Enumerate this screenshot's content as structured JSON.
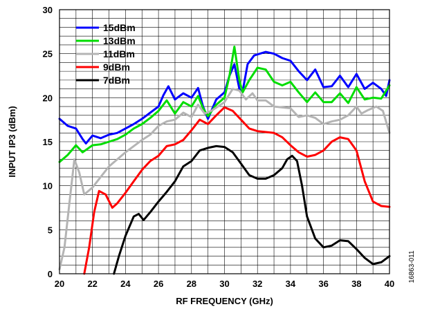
{
  "chart_data": {
    "type": "line",
    "xlabel": "RF FREQUENCY (GHz)",
    "ylabel": "INPUT IP3 (dBm)",
    "xlim": [
      20,
      40
    ],
    "ylim": [
      0,
      30
    ],
    "x_ticks": [
      "20",
      "22",
      "24",
      "26",
      "28",
      "30",
      "32",
      "34",
      "36",
      "38",
      "40"
    ],
    "y_ticks": [
      "0",
      "5",
      "10",
      "15",
      "20",
      "25",
      "30"
    ],
    "grid": true,
    "legend_position": "top-left",
    "figure_id": "16863-011",
    "series": [
      {
        "name": "15dBm",
        "color": "#0000ff",
        "points": [
          [
            20,
            17.6
          ],
          [
            20.5,
            16.8
          ],
          [
            21,
            16.5
          ],
          [
            21.4,
            15.3
          ],
          [
            21.6,
            14.8
          ],
          [
            22,
            15.7
          ],
          [
            22.5,
            15.4
          ],
          [
            23,
            15.8
          ],
          [
            23.5,
            16.0
          ],
          [
            24,
            16.5
          ],
          [
            24.5,
            17.0
          ],
          [
            25,
            17.6
          ],
          [
            25.5,
            18.3
          ],
          [
            26,
            19.0
          ],
          [
            26.3,
            20.3
          ],
          [
            26.6,
            21.3
          ],
          [
            27,
            19.8
          ],
          [
            27.5,
            20.5
          ],
          [
            28,
            20.0
          ],
          [
            28.4,
            21.1
          ],
          [
            28.7,
            19.0
          ],
          [
            29,
            17.6
          ],
          [
            29.5,
            19.8
          ],
          [
            30,
            20.6
          ],
          [
            30.3,
            22.5
          ],
          [
            30.6,
            23.8
          ],
          [
            30.9,
            21.0
          ],
          [
            31.1,
            20.7
          ],
          [
            31.4,
            23.8
          ],
          [
            31.8,
            24.8
          ],
          [
            32.5,
            25.2
          ],
          [
            33,
            25.0
          ],
          [
            33.5,
            24.5
          ],
          [
            34,
            24.2
          ],
          [
            34.5,
            23.0
          ],
          [
            35,
            22.0
          ],
          [
            35.5,
            23.2
          ],
          [
            36,
            21.2
          ],
          [
            36.5,
            21.3
          ],
          [
            37,
            22.5
          ],
          [
            37.5,
            21.2
          ],
          [
            38,
            22.7
          ],
          [
            38.5,
            21.0
          ],
          [
            39,
            21.7
          ],
          [
            39.5,
            21.0
          ],
          [
            39.8,
            20.2
          ],
          [
            40,
            22.0
          ]
        ]
      },
      {
        "name": "13dBm",
        "color": "#00dd00",
        "points": [
          [
            20,
            12.7
          ],
          [
            20.5,
            13.5
          ],
          [
            21,
            14.6
          ],
          [
            21.4,
            13.8
          ],
          [
            22,
            14.6
          ],
          [
            22.5,
            14.7
          ],
          [
            23,
            15.0
          ],
          [
            23.5,
            15.3
          ],
          [
            24,
            15.8
          ],
          [
            24.5,
            16.5
          ],
          [
            25,
            17.0
          ],
          [
            25.5,
            17.7
          ],
          [
            26,
            18.5
          ],
          [
            26.5,
            19.7
          ],
          [
            27,
            18.2
          ],
          [
            27.5,
            19.5
          ],
          [
            28,
            19.0
          ],
          [
            28.4,
            20.2
          ],
          [
            28.7,
            18.8
          ],
          [
            29,
            17.9
          ],
          [
            29.5,
            19.2
          ],
          [
            30,
            20.0
          ],
          [
            30.3,
            22.5
          ],
          [
            30.6,
            25.8
          ],
          [
            30.9,
            22.0
          ],
          [
            31.1,
            20.6
          ],
          [
            31.5,
            22.0
          ],
          [
            32,
            23.4
          ],
          [
            32.5,
            23.2
          ],
          [
            33,
            21.8
          ],
          [
            33.5,
            21.4
          ],
          [
            34,
            21.8
          ],
          [
            34.5,
            20.6
          ],
          [
            35,
            19.5
          ],
          [
            35.5,
            20.6
          ],
          [
            36,
            19.5
          ],
          [
            36.5,
            19.5
          ],
          [
            37,
            20.5
          ],
          [
            37.5,
            19.4
          ],
          [
            38,
            21.2
          ],
          [
            38.5,
            19.8
          ],
          [
            39,
            20.0
          ],
          [
            39.5,
            19.9
          ],
          [
            40,
            21.4
          ]
        ]
      },
      {
        "name": "11dBm",
        "color": "#b4b4b4",
        "points": [
          [
            20,
            0.5
          ],
          [
            20.3,
            3
          ],
          [
            20.6,
            8
          ],
          [
            20.9,
            13
          ],
          [
            21.2,
            11.5
          ],
          [
            21.5,
            9.0
          ],
          [
            22,
            9.8
          ],
          [
            22.5,
            11.0
          ],
          [
            23,
            12.2
          ],
          [
            23.5,
            13.0
          ],
          [
            24,
            13.8
          ],
          [
            24.5,
            14.5
          ],
          [
            25,
            15.2
          ],
          [
            25.5,
            15.8
          ],
          [
            26,
            16.8
          ],
          [
            26.5,
            17.3
          ],
          [
            27,
            17.5
          ],
          [
            27.5,
            18.3
          ],
          [
            28,
            17.8
          ],
          [
            28.4,
            19.2
          ],
          [
            28.8,
            18.2
          ],
          [
            29.2,
            18.5
          ],
          [
            29.6,
            19.0
          ],
          [
            30,
            19.5
          ],
          [
            30.5,
            21.0
          ],
          [
            30.9,
            20.8
          ],
          [
            31.3,
            19.8
          ],
          [
            31.7,
            20.5
          ],
          [
            32,
            19.7
          ],
          [
            32.5,
            19.7
          ],
          [
            33,
            19.0
          ],
          [
            34,
            18.8
          ],
          [
            34.5,
            17.8
          ],
          [
            35,
            18.0
          ],
          [
            35.5,
            17.7
          ],
          [
            36,
            17.0
          ],
          [
            36.5,
            17.3
          ],
          [
            37,
            17.5
          ],
          [
            37.5,
            18.0
          ],
          [
            38,
            19.0
          ],
          [
            38.3,
            18.2
          ],
          [
            38.7,
            18.6
          ],
          [
            39.2,
            19.0
          ],
          [
            39.6,
            18.5
          ],
          [
            40,
            16.0
          ]
        ]
      },
      {
        "name": "9dBm",
        "color": "#ff0000",
        "points": [
          [
            21.5,
            0
          ],
          [
            21.8,
            3
          ],
          [
            22.1,
            7
          ],
          [
            22.4,
            9.4
          ],
          [
            22.8,
            9.0
          ],
          [
            23.2,
            7.5
          ],
          [
            23.5,
            8.0
          ],
          [
            24,
            9.2
          ],
          [
            24.5,
            10.5
          ],
          [
            25,
            11.8
          ],
          [
            25.5,
            12.8
          ],
          [
            26,
            13.4
          ],
          [
            26.5,
            14.5
          ],
          [
            27,
            14.7
          ],
          [
            27.5,
            15.2
          ],
          [
            28,
            16.3
          ],
          [
            28.5,
            17.5
          ],
          [
            29,
            17.0
          ],
          [
            29.5,
            18.0
          ],
          [
            30,
            18.9
          ],
          [
            30.5,
            18.5
          ],
          [
            31,
            17.5
          ],
          [
            31.5,
            16.5
          ],
          [
            32,
            16.2
          ],
          [
            32.5,
            16.1
          ],
          [
            33,
            16.0
          ],
          [
            33.5,
            15.5
          ],
          [
            34,
            14.6
          ],
          [
            34.5,
            13.8
          ],
          [
            35,
            13.3
          ],
          [
            35.5,
            13.5
          ],
          [
            36,
            14.0
          ],
          [
            36.5,
            15.0
          ],
          [
            37,
            15.5
          ],
          [
            37.5,
            15.3
          ],
          [
            38,
            14.0
          ],
          [
            38.5,
            10.5
          ],
          [
            39,
            8.2
          ],
          [
            39.5,
            7.7
          ],
          [
            40,
            7.6
          ]
        ]
      },
      {
        "name": "7dBm",
        "color": "#000000",
        "points": [
          [
            23.3,
            0
          ],
          [
            23.6,
            2
          ],
          [
            24,
            4.3
          ],
          [
            24.5,
            6.5
          ],
          [
            24.8,
            6.8
          ],
          [
            25.1,
            6.1
          ],
          [
            25.5,
            7.0
          ],
          [
            26,
            8.2
          ],
          [
            26.5,
            9.3
          ],
          [
            27,
            10.5
          ],
          [
            27.5,
            12.2
          ],
          [
            28,
            12.8
          ],
          [
            28.5,
            14.0
          ],
          [
            29,
            14.3
          ],
          [
            29.5,
            14.5
          ],
          [
            30,
            14.4
          ],
          [
            30.5,
            13.8
          ],
          [
            31,
            12.5
          ],
          [
            31.5,
            11.2
          ],
          [
            32,
            10.8
          ],
          [
            32.5,
            10.8
          ],
          [
            33,
            11.2
          ],
          [
            33.5,
            12.0
          ],
          [
            33.8,
            13.0
          ],
          [
            34.1,
            13.4
          ],
          [
            34.4,
            12.8
          ],
          [
            34.7,
            10.0
          ],
          [
            35,
            6.5
          ],
          [
            35.5,
            4.0
          ],
          [
            36,
            3.0
          ],
          [
            36.5,
            3.2
          ],
          [
            37,
            3.8
          ],
          [
            37.5,
            3.7
          ],
          [
            38,
            2.8
          ],
          [
            38.5,
            1.8
          ],
          [
            39,
            1.1
          ],
          [
            39.5,
            1.3
          ],
          [
            40,
            2.0
          ]
        ]
      }
    ]
  }
}
